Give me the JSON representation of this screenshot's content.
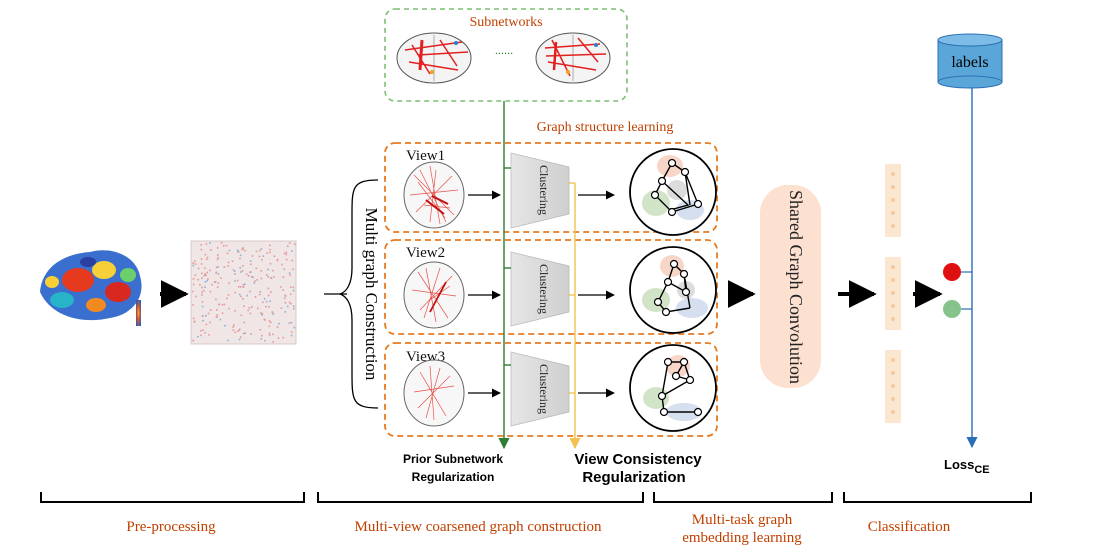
{
  "subnetworks": {
    "title": "Subnetworks",
    "ellipsis": "......"
  },
  "graph_structure_learning": "Graph structure learning",
  "multi_graph_construction": "Multi graph Construction",
  "views": [
    {
      "label": "View1",
      "clustering": "Clustering"
    },
    {
      "label": "View2",
      "clustering": "Clustering"
    },
    {
      "label": "View3",
      "clustering": "Clustering"
    }
  ],
  "shared_graph_convolution": "Shared Graph Convolution",
  "labels_db": "labels",
  "loss": {
    "main": "Loss",
    "sub": "CE"
  },
  "regularizations": {
    "prior_line1": "Prior Subnetwork",
    "prior_line2": "Regularization",
    "view_line1": "View Consistency",
    "view_line2": "Regularization"
  },
  "stages": {
    "pre_processing": "Pre-processing",
    "multi_view": "Multi-view coarsened graph construction",
    "multi_task_line1": "Multi-task graph",
    "multi_task_line2": "embedding learning",
    "classification": "Classification"
  },
  "colors": {
    "orange_dashed": "#e87a1e",
    "green_dashed": "#7cbf73",
    "green_arrow": "#2e7d32",
    "yellow_arrow": "#f2c14e",
    "blue_line": "#2a6fb5",
    "stage_text": "#c04000",
    "shared_conv_fill": "#fce0d0",
    "db_fill": "#5aa6d8",
    "red_dot": "#e01010",
    "green_dot": "#86c38a"
  }
}
